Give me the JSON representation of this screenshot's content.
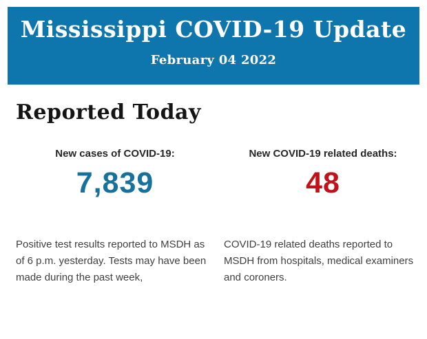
{
  "banner": {
    "title": "Mississippi COVID-19 Update",
    "date": "February 04 2022",
    "bg_color": "#0e76ad",
    "text_color": "#ffffff"
  },
  "main": {
    "heading": "Reported Today",
    "stats": [
      {
        "label": "New cases of COVID-19:",
        "value": "7,839",
        "value_color": "#17719d",
        "description": "Positive test results reported to MSDH as of 6 p.m. yesterday. Tests may have been made during the past week,"
      },
      {
        "label": "New COVID-19 related deaths:",
        "value": "48",
        "value_color": "#c1121a",
        "description": "COVID-19 related deaths reported to MSDH from hospitals, medical examiners and coroners."
      }
    ]
  }
}
